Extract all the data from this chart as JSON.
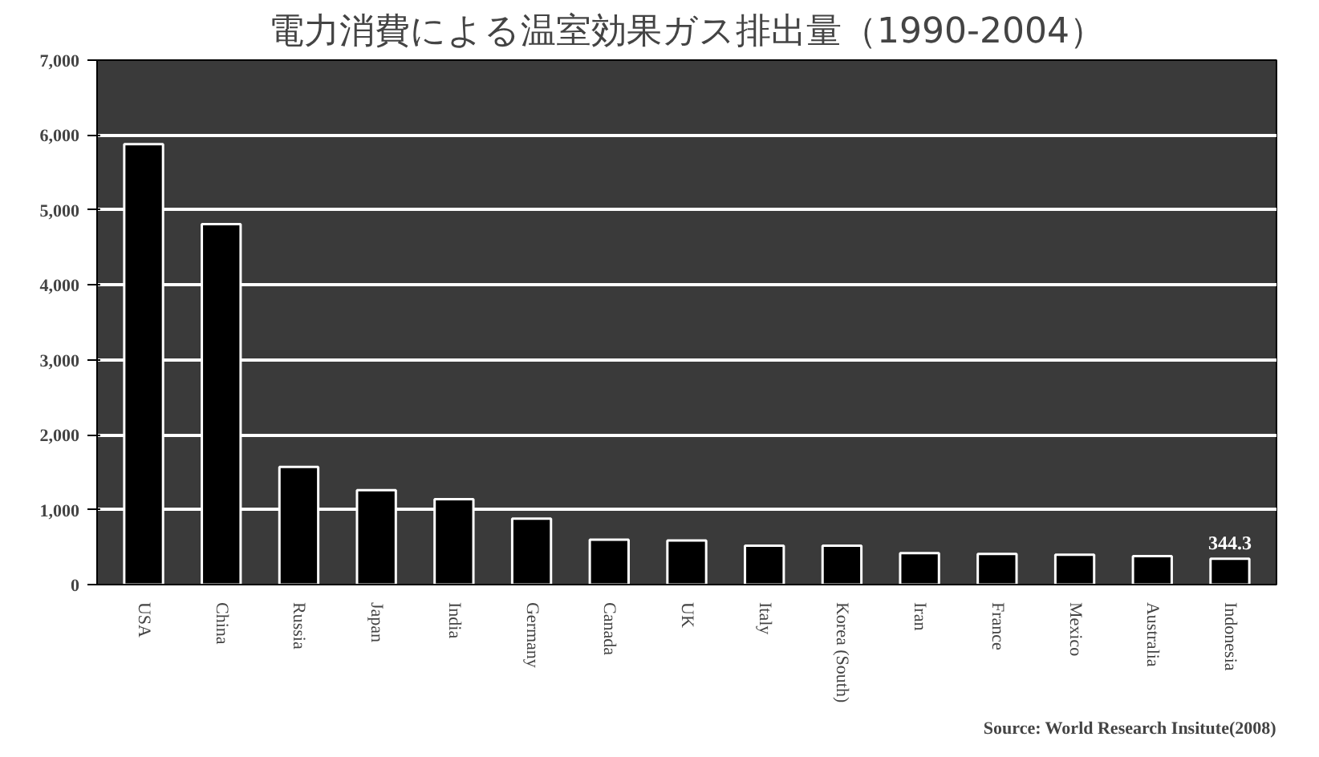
{
  "chart_data": {
    "type": "bar",
    "title": "電力消費による温室効果ガス排出量（1990-2004）",
    "categories": [
      "USA",
      "China",
      "Russia",
      "Japan",
      "India",
      "Germany",
      "Canada",
      "UK",
      "Italy",
      "Korea (South)",
      "Iran",
      "France",
      "Mexico",
      "Australia",
      "Indonesia"
    ],
    "values": [
      5880,
      4810,
      1570,
      1260,
      1140,
      880,
      600,
      590,
      520,
      520,
      420,
      410,
      400,
      380,
      344.3
    ],
    "value_labels": [
      null,
      null,
      null,
      null,
      null,
      null,
      null,
      null,
      null,
      null,
      null,
      null,
      null,
      null,
      "344.3"
    ],
    "color": "#000000",
    "ylim": [
      0,
      7000
    ],
    "yticks": [
      {
        "value": 0,
        "label": "0"
      },
      {
        "value": 1000,
        "label": "1,000"
      },
      {
        "value": 2000,
        "label": "2,000"
      },
      {
        "value": 3000,
        "label": "3,000"
      },
      {
        "value": 4000,
        "label": "4,000"
      },
      {
        "value": 5000,
        "label": "5,000"
      },
      {
        "value": 6000,
        "label": "6,000"
      },
      {
        "value": 7000,
        "label": "7,000"
      }
    ],
    "grid": "y",
    "annotations": [
      "Source: World Research Insitute(2008)"
    ]
  }
}
